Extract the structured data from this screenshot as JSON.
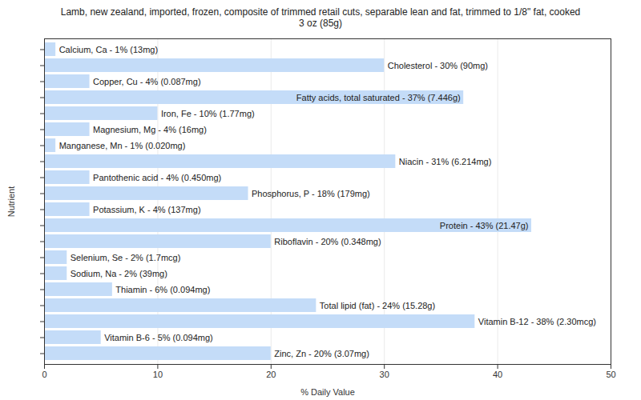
{
  "chart_data": {
    "type": "bar",
    "orientation": "horizontal",
    "title": "Lamb, new zealand, imported, frozen, composite of trimmed retail cuts, separable lean and fat, trimmed to 1/8\" fat, cooked",
    "subtitle": "3 oz (85g)",
    "x_label": "% Daily Value",
    "y_label": "Nutrient",
    "categories": [
      "Calcium, Ca",
      "Cholesterol",
      "Copper, Cu",
      "Fatty acids, total saturated",
      "Iron, Fe",
      "Magnesium, Mg",
      "Manganese, Mn",
      "Niacin",
      "Pantothenic acid",
      "Phosphorus, P",
      "Potassium, K",
      "Protein",
      "Riboflavin",
      "Selenium, Se",
      "Sodium, Na",
      "Thiamin",
      "Total lipid (fat)",
      "Vitamin B-12",
      "Vitamin B-6",
      "Zinc, Zn"
    ],
    "values": [
      1,
      30,
      4,
      37,
      10,
      4,
      1,
      31,
      4,
      18,
      4,
      43,
      20,
      2,
      2,
      6,
      24,
      38,
      5,
      20
    ],
    "value_labels": [
      "Calcium, Ca - 1% (13mg)",
      "Cholesterol - 30% (90mg)",
      "Copper, Cu - 4% (0.087mg)",
      "Fatty acids, total saturated - 37% (7.446g)",
      "Iron, Fe - 10% (1.77mg)",
      "Magnesium, Mg - 4% (16mg)",
      "Manganese, Mn - 1% (0.020mg)",
      "Niacin - 31% (6.214mg)",
      "Pantothenic acid - 4% (0.450mg)",
      "Phosphorus, P - 18% (179mg)",
      "Potassium, K - 4% (137mg)",
      "Protein - 43% (21.47g)",
      "Riboflavin - 20% (0.348mg)",
      "Selenium, Se - 2% (1.7mcg)",
      "Sodium, Na - 2% (39mg)",
      "Thiamin - 6% (0.094mg)",
      "Total lipid (fat) - 24% (15.28g)",
      "Vitamin B-12 - 38% (2.30mcg)",
      "Vitamin B-6 - 5% (0.094mg)",
      "Zinc, Zn - 20% (3.07mg)"
    ],
    "color": "#c4dcf8",
    "xlim": [
      0,
      50
    ],
    "xticks": [
      0,
      10,
      20,
      30,
      40,
      50
    ],
    "grid": true,
    "data_labels": true,
    "tick_labels": "x"
  }
}
